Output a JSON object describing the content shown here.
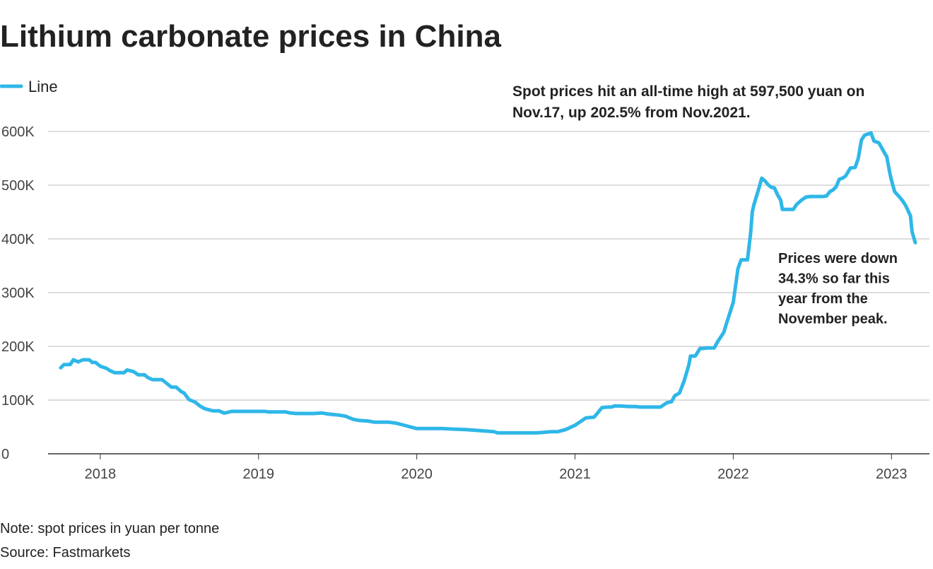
{
  "chart_data": {
    "type": "line",
    "title": "Lithium carbonate prices in China",
    "x": [
      2017.75,
      2017.77,
      2017.81,
      2017.83,
      2017.86,
      2017.89,
      2017.93,
      2017.95,
      2017.97,
      2018.0,
      2018.04,
      2018.06,
      2018.09,
      2018.15,
      2018.17,
      2018.21,
      2018.24,
      2018.28,
      2018.3,
      2018.33,
      2018.39,
      2018.45,
      2018.48,
      2018.51,
      2018.53,
      2018.56,
      2018.6,
      2018.63,
      2018.66,
      2018.71,
      2018.75,
      2018.78,
      2018.79,
      2018.83,
      2018.93,
      2019.04,
      2019.06,
      2019.17,
      2019.2,
      2019.24,
      2019.35,
      2019.4,
      2019.44,
      2019.51,
      2019.55,
      2019.6,
      2019.64,
      2019.69,
      2019.73,
      2019.82,
      2019.87,
      2019.91,
      2019.96,
      2020.0,
      2020.16,
      2020.22,
      2020.31,
      2020.4,
      2020.49,
      2020.51,
      2020.76,
      2020.85,
      2020.89,
      2020.94,
      2021.0,
      2021.04,
      2021.07,
      2021.12,
      2021.14,
      2021.17,
      2021.21,
      2021.23,
      2021.25,
      2021.29,
      2021.34,
      2021.38,
      2021.41,
      2021.54,
      2021.58,
      2021.61,
      2021.63,
      2021.66,
      2021.69,
      2021.72,
      2021.73,
      2021.76,
      2021.79,
      2021.81,
      2021.83,
      2021.88,
      2021.9,
      2021.94,
      2021.96,
      2022.0,
      2022.03,
      2022.05,
      2022.09,
      2022.11,
      2022.12,
      2022.13,
      2022.16,
      2022.18,
      2022.2,
      2022.22,
      2022.24,
      2022.26,
      2022.28,
      2022.3,
      2022.31,
      2022.37,
      2022.38,
      2022.4,
      2022.43,
      2022.46,
      2022.49,
      2022.57,
      2022.59,
      2022.61,
      2022.63,
      2022.65,
      2022.67,
      2022.69,
      2022.71,
      2022.74,
      2022.77,
      2022.79,
      2022.81,
      2022.83,
      2022.86,
      2022.87,
      2022.89,
      2022.92,
      2022.95,
      2022.97,
      2022.99,
      2023.0,
      2023.02,
      2023.05,
      2023.07,
      2023.09,
      2023.12,
      2023.13,
      2023.15
    ],
    "series": [
      {
        "name": "Line",
        "color": "#2fb7e8",
        "values": [
          160000,
          166000,
          166000,
          175000,
          171000,
          175000,
          175000,
          170000,
          170000,
          163000,
          159000,
          155000,
          151000,
          151000,
          156000,
          153000,
          147000,
          147000,
          142000,
          138000,
          138000,
          124000,
          124000,
          116000,
          113000,
          101000,
          96000,
          89000,
          84000,
          80000,
          80000,
          76000,
          76000,
          79000,
          79000,
          79000,
          78000,
          78000,
          76000,
          75000,
          75000,
          76000,
          74000,
          72000,
          70000,
          64000,
          62000,
          61000,
          59000,
          59000,
          57000,
          54000,
          50000,
          47000,
          47000,
          46000,
          45000,
          43000,
          41000,
          39000,
          39000,
          41000,
          41000,
          45000,
          53000,
          61000,
          67000,
          68000,
          75000,
          86000,
          87000,
          87000,
          89000,
          89000,
          88000,
          88000,
          87000,
          87000,
          95000,
          97000,
          108000,
          113000,
          136000,
          166000,
          182000,
          182000,
          196000,
          196000,
          197000,
          197000,
          208000,
          226000,
          245000,
          282000,
          345000,
          361000,
          361000,
          411000,
          450000,
          463000,
          492000,
          513000,
          508000,
          501000,
          496000,
          495000,
          482000,
          472000,
          455000,
          455000,
          455000,
          464000,
          472000,
          478000,
          479000,
          479000,
          480000,
          488000,
          491000,
          497000,
          511000,
          513000,
          517000,
          532000,
          533000,
          550000,
          584000,
          593000,
          596000,
          597500,
          582000,
          579000,
          563000,
          553000,
          522000,
          509000,
          488000,
          478000,
          471000,
          462000,
          443000,
          413000,
          393000
        ]
      }
    ],
    "xlim": [
      2017.67,
      2023.24
    ],
    "xticks": [
      2018,
      2019,
      2020,
      2021,
      2022,
      2023
    ],
    "ylim": [
      0,
      600000
    ],
    "yticks": [
      0,
      {
        "value": 100000,
        "label": "100K"
      },
      {
        "value": 200000,
        "label": "200K"
      },
      {
        "value": 300000,
        "label": "300K"
      },
      {
        "value": 400000,
        "label": "400K"
      },
      {
        "value": 500000,
        "label": "500K"
      },
      {
        "value": 600000,
        "label": "600K"
      }
    ],
    "grid": true,
    "legend": "top-left",
    "annotations": [
      {
        "lines": [
          "Spot prices hit an all-time high at 597,500 yuan on",
          "Nov.17, up 202.5% from Nov.2021."
        ]
      },
      {
        "lines": [
          "Prices were down",
          "34.3% so far this",
          "year from the",
          "November peak."
        ]
      }
    ],
    "note": "Note: spot prices in yuan per tonne",
    "source": "Source: Fastmarkets"
  }
}
